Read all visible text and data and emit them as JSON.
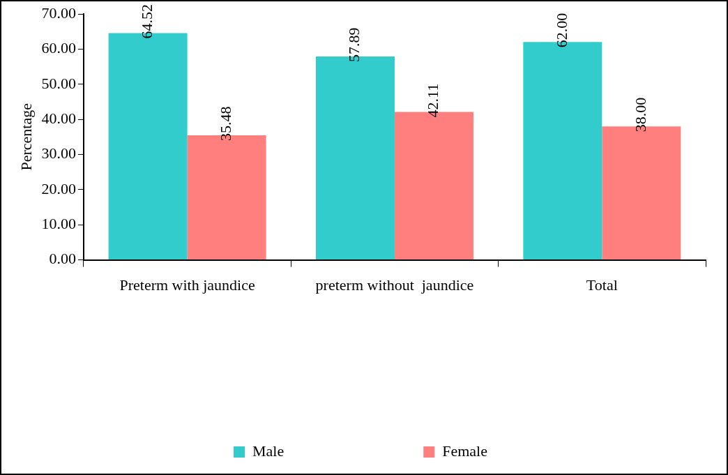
{
  "chart_data": {
    "type": "bar",
    "ylabel": "Percentage",
    "categories": [
      "Preterm with jaundice",
      "preterm without  jaundice",
      "Total"
    ],
    "series": [
      {
        "name": "Male",
        "color": "#33cccc",
        "values": [
          64.52,
          57.89,
          62.0
        ]
      },
      {
        "name": "Female",
        "color": "#ff7f7f",
        "values": [
          35.48,
          42.11,
          38.0
        ]
      }
    ],
    "ylim": [
      0,
      70
    ],
    "yticks": [
      {
        "value": 0,
        "label": "0.00"
      },
      {
        "value": 10,
        "label": "10.00"
      },
      {
        "value": 20,
        "label": "20.00"
      },
      {
        "value": 30,
        "label": "30.00"
      },
      {
        "value": 40,
        "label": "40.00"
      },
      {
        "value": 50,
        "label": "50.00"
      },
      {
        "value": 60,
        "label": "60.00"
      },
      {
        "value": 70,
        "label": "70.00"
      }
    ],
    "value_labels": [
      [
        "64.52",
        "57.89",
        "62.00"
      ],
      [
        "35.48",
        "42.11",
        "38.00"
      ]
    ],
    "grid": false,
    "legend": "bottom"
  }
}
